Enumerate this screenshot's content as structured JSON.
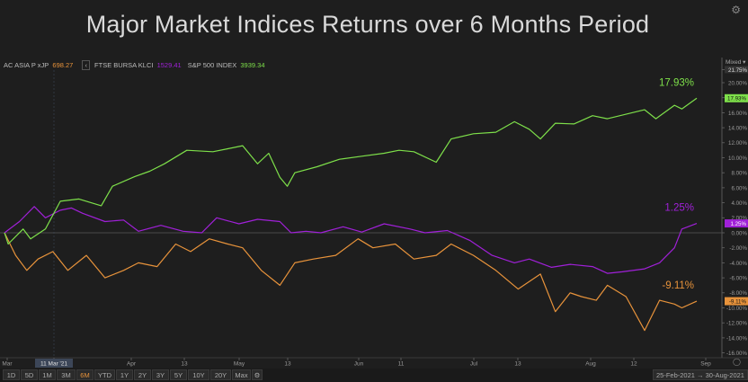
{
  "title": "Major Market Indices Returns over 6 Months Period",
  "legend": [
    {
      "name": "AC ASIA P xJP",
      "value": "698.27",
      "color": "#e8933b"
    },
    {
      "name": "FTSE BURSA KLCI",
      "value": "1529.41",
      "color": "#a020d8"
    },
    {
      "name": "S&P 500 INDEX",
      "value": "3939.34",
      "color": "#7ee04a"
    }
  ],
  "axis_mode_label": "Mixed",
  "toolbar": {
    "ranges": [
      "1D",
      "5D",
      "1M",
      "3M",
      "6M",
      "YTD",
      "1Y",
      "2Y",
      "3Y",
      "5Y",
      "10Y",
      "20Y",
      "Max"
    ],
    "active": "6M",
    "date_range": "25-Feb-2021 → 30-Aug-2021"
  },
  "crosshair_label": "11 Mar '21",
  "colors": {
    "asia": "#e8933b",
    "klci": "#a020d8",
    "spx": "#7ee04a",
    "background": "#1e1e1e"
  },
  "chart_data": {
    "type": "line",
    "title": "Major Market Indices Returns over 6 Months Period",
    "x_range": [
      "2021-02-25",
      "2021-08-30"
    ],
    "x_ticks": [
      "Mar",
      "11 Mar '21",
      "Apr",
      "13",
      "May",
      "13",
      "Jun",
      "11",
      "Jul",
      "13",
      "Aug",
      "12",
      "Sep"
    ],
    "y_ticks": [
      "21.75%",
      "20.00%",
      "18.00%",
      "16.00%",
      "14.00%",
      "12.00%",
      "10.00%",
      "8.00%",
      "6.00%",
      "4.00%",
      "2.00%",
      "0.00%",
      "-2.00%",
      "-4.00%",
      "-6.00%",
      "-8.00%",
      "-10.00%",
      "-12.00%",
      "-14.00%",
      "-16.00%"
    ],
    "ylim": [
      -16.5,
      22.5
    ],
    "ylabel": "",
    "xlabel": "",
    "series": [
      {
        "name": "S&P 500 INDEX",
        "end_label": "17.93%",
        "x": [
          "2021-02-25",
          "2021-02-26",
          "2021-03-02",
          "2021-03-04",
          "2021-03-08",
          "2021-03-12",
          "2021-03-17",
          "2021-03-23",
          "2021-03-26",
          "2021-04-01",
          "2021-04-05",
          "2021-04-09",
          "2021-04-15",
          "2021-04-22",
          "2021-04-26",
          "2021-04-30",
          "2021-05-04",
          "2021-05-07",
          "2021-05-10",
          "2021-05-12",
          "2021-05-14",
          "2021-05-20",
          "2021-05-26",
          "2021-06-01",
          "2021-06-07",
          "2021-06-11",
          "2021-06-15",
          "2021-06-21",
          "2021-06-25",
          "2021-07-01",
          "2021-07-07",
          "2021-07-12",
          "2021-07-16",
          "2021-07-19",
          "2021-07-23",
          "2021-07-28",
          "2021-08-02",
          "2021-08-06",
          "2021-08-11",
          "2021-08-16",
          "2021-08-19",
          "2021-08-24",
          "2021-08-26",
          "2021-08-30"
        ],
        "y": [
          0.0,
          -1.5,
          0.5,
          -0.8,
          0.5,
          4.2,
          4.5,
          3.6,
          6.2,
          7.5,
          8.2,
          9.2,
          11.0,
          10.8,
          11.2,
          11.6,
          9.2,
          10.6,
          7.4,
          6.2,
          8.0,
          8.8,
          9.8,
          10.2,
          10.6,
          11.0,
          10.8,
          9.4,
          12.5,
          13.2,
          13.4,
          14.8,
          13.8,
          12.5,
          14.6,
          14.5,
          15.6,
          15.2,
          15.8,
          16.4,
          15.2,
          17.0,
          16.5,
          17.93
        ]
      },
      {
        "name": "FTSE BURSA KLCI",
        "end_label": "1.25%",
        "x": [
          "2021-02-25",
          "2021-03-01",
          "2021-03-05",
          "2021-03-08",
          "2021-03-12",
          "2021-03-15",
          "2021-03-18",
          "2021-03-24",
          "2021-03-29",
          "2021-04-02",
          "2021-04-08",
          "2021-04-14",
          "2021-04-19",
          "2021-04-23",
          "2021-04-29",
          "2021-05-04",
          "2021-05-10",
          "2021-05-13",
          "2021-05-17",
          "2021-05-21",
          "2021-05-27",
          "2021-06-01",
          "2021-06-07",
          "2021-06-14",
          "2021-06-18",
          "2021-06-24",
          "2021-06-30",
          "2021-07-06",
          "2021-07-12",
          "2021-07-16",
          "2021-07-22",
          "2021-07-27",
          "2021-08-02",
          "2021-08-06",
          "2021-08-10",
          "2021-08-16",
          "2021-08-20",
          "2021-08-24",
          "2021-08-26",
          "2021-08-30"
        ],
        "y": [
          0.0,
          1.5,
          3.5,
          2.0,
          3.0,
          3.3,
          2.6,
          1.5,
          1.7,
          0.2,
          1.0,
          0.2,
          0.0,
          2.0,
          1.2,
          1.8,
          1.5,
          0.0,
          0.2,
          0.0,
          0.8,
          0.1,
          1.2,
          0.5,
          0.0,
          0.3,
          -1.0,
          -3.0,
          -4.0,
          -3.5,
          -4.6,
          -4.2,
          -4.5,
          -5.4,
          -5.2,
          -4.8,
          -4.0,
          -2.0,
          0.5,
          1.25
        ]
      },
      {
        "name": "AC ASIA P xJP",
        "end_label": "-9.11%",
        "x": [
          "2021-02-25",
          "2021-02-28",
          "2021-03-03",
          "2021-03-06",
          "2021-03-10",
          "2021-03-14",
          "2021-03-19",
          "2021-03-24",
          "2021-03-29",
          "2021-04-02",
          "2021-04-07",
          "2021-04-12",
          "2021-04-16",
          "2021-04-21",
          "2021-04-26",
          "2021-04-30",
          "2021-05-05",
          "2021-05-10",
          "2021-05-14",
          "2021-05-19",
          "2021-05-25",
          "2021-05-31",
          "2021-06-04",
          "2021-06-10",
          "2021-06-15",
          "2021-06-21",
          "2021-06-25",
          "2021-07-01",
          "2021-07-07",
          "2021-07-13",
          "2021-07-19",
          "2021-07-23",
          "2021-07-27",
          "2021-07-30",
          "2021-08-03",
          "2021-08-06",
          "2021-08-11",
          "2021-08-16",
          "2021-08-20",
          "2021-08-24",
          "2021-08-26",
          "2021-08-30"
        ],
        "y": [
          0.0,
          -3.0,
          -5.0,
          -3.5,
          -2.5,
          -5.0,
          -3.0,
          -6.0,
          -5.0,
          -4.0,
          -4.5,
          -1.5,
          -2.5,
          -0.8,
          -1.5,
          -2.0,
          -5.0,
          -7.0,
          -4.0,
          -3.5,
          -3.0,
          -0.8,
          -2.0,
          -1.5,
          -3.5,
          -3.0,
          -1.5,
          -3.0,
          -5.0,
          -7.5,
          -5.5,
          -10.5,
          -8.0,
          -8.5,
          -9.0,
          -7.0,
          -8.5,
          -13.0,
          -9.0,
          -9.5,
          -10.0,
          -9.11
        ]
      }
    ]
  }
}
